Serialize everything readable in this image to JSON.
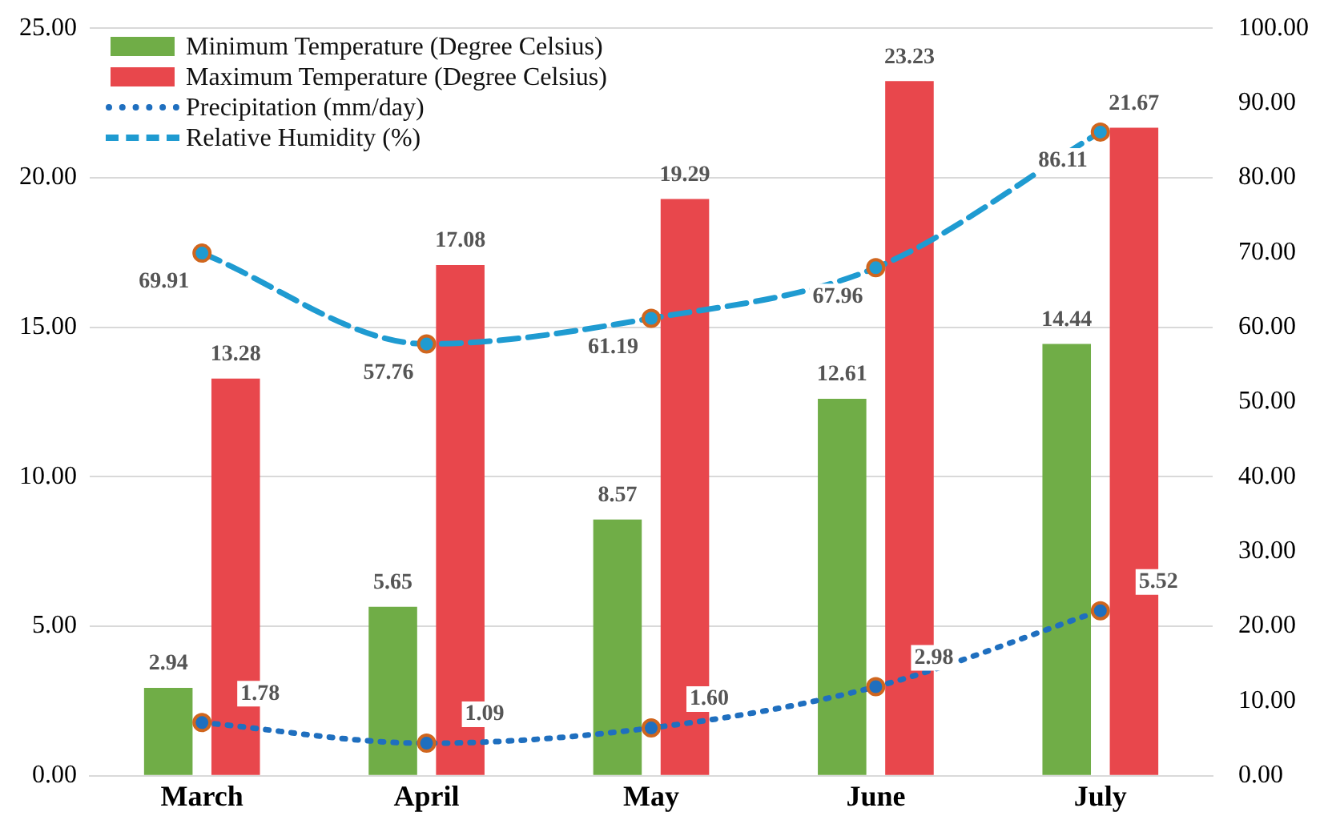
{
  "chart_data": {
    "type": "bar",
    "categories": [
      "March",
      "April",
      "May",
      "June",
      "July"
    ],
    "series": [
      {
        "name": "Minimum Temperature (Degree Celsius)",
        "color": "#70ad47",
        "values": [
          2.94,
          5.65,
          8.57,
          12.61,
          14.44
        ],
        "value_labels": [
          "2.94",
          "5.65",
          "8.57",
          "12.61",
          "14.44"
        ]
      },
      {
        "name": "Maximum Temperature (Degree Celsius)",
        "color": "#e8474c",
        "values": [
          13.28,
          17.08,
          19.29,
          23.23,
          21.67
        ],
        "value_labels": [
          "13.28",
          "17.08",
          "19.29",
          "23.23",
          "21.67"
        ]
      },
      {
        "name": "Precipitation (mm/day)",
        "type": "line",
        "color": "#1f6fbf",
        "line_style": "dotted",
        "marker": "circle",
        "values": [
          1.78,
          1.09,
          1.6,
          2.98,
          5.52
        ],
        "value_labels": [
          "1.78",
          "1.09",
          "1.60",
          "2.98",
          "5.52"
        ]
      },
      {
        "name": "Relative Humidity (%)",
        "type": "line",
        "axis": "y2",
        "color": "#1f9bd1",
        "line_style": "dashed",
        "marker": "circle",
        "values": [
          69.91,
          57.76,
          61.19,
          67.96,
          86.11
        ],
        "value_labels": [
          "69.91",
          "57.76",
          "61.19",
          "67.96",
          "86.11"
        ]
      }
    ],
    "ylim": [
      0,
      25
    ],
    "yticks": [
      {
        "value": 0,
        "label": "0.00"
      },
      {
        "value": 5,
        "label": "5.00"
      },
      {
        "value": 10,
        "label": "10.00"
      },
      {
        "value": 15,
        "label": "15.00"
      },
      {
        "value": 20,
        "label": "20.00"
      },
      {
        "value": 25,
        "label": "25.00"
      }
    ],
    "y2lim": [
      0,
      100
    ],
    "y2ticks": [
      {
        "value": 0,
        "label": "0.00"
      },
      {
        "value": 10,
        "label": "10.00"
      },
      {
        "value": 20,
        "label": "20.00"
      },
      {
        "value": 30,
        "label": "30.00"
      },
      {
        "value": 40,
        "label": "40.00"
      },
      {
        "value": 50,
        "label": "50.00"
      },
      {
        "value": 60,
        "label": "60.00"
      },
      {
        "value": 70,
        "label": "70.00"
      },
      {
        "value": 80,
        "label": "80.00"
      },
      {
        "value": 90,
        "label": "90.00"
      },
      {
        "value": 100,
        "label": "100.00"
      }
    ],
    "grid": "y",
    "legend": "top left"
  }
}
